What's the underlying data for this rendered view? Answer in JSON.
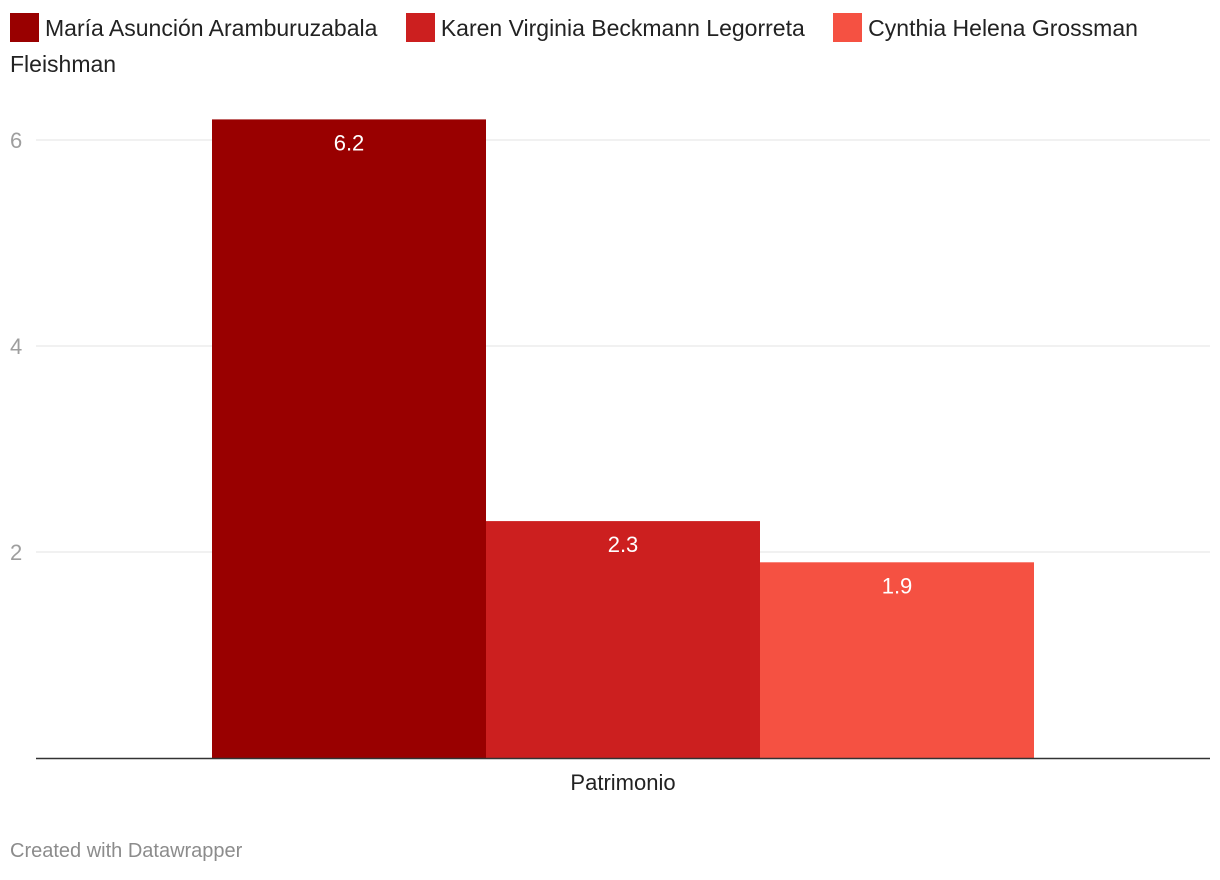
{
  "chart_data": {
    "type": "bar",
    "categories": [
      "Patrimonio"
    ],
    "series": [
      {
        "name": "María Asunción Aramburuzabala",
        "values": [
          6.2
        ],
        "color": "#990000"
      },
      {
        "name": "Karen Virginia Beckmann Legorreta",
        "values": [
          2.3
        ],
        "color": "#cc1f1f"
      },
      {
        "name": "Cynthia Helena Grossman Fleishman",
        "values": [
          1.9
        ],
        "color": "#f55142"
      }
    ],
    "yticks": [
      2,
      4,
      6
    ],
    "ylim": [
      0,
      6.2
    ],
    "grid": true,
    "legend": "top-left",
    "value_labels": [
      "6.2",
      "2.3",
      "1.9"
    ]
  },
  "footer": "Created with Datawrapper"
}
